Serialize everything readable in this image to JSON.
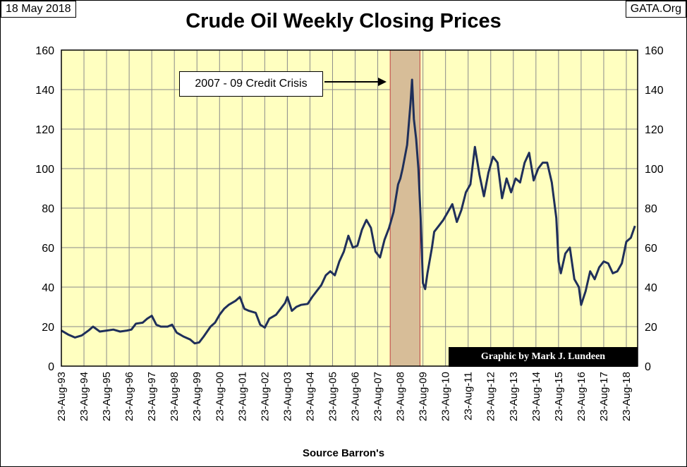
{
  "header": {
    "date_label": "18 May 2018",
    "source_label": "GATA.Org"
  },
  "chart_data": {
    "type": "line",
    "title": "Crude Oil Weekly Closing Prices",
    "xlabel": "Source Barron's",
    "ylabel": "",
    "ylim": [
      0,
      160
    ],
    "y_ticks": [
      0,
      20,
      40,
      60,
      80,
      100,
      120,
      140,
      160
    ],
    "x_tick_labels": [
      "23-Aug-93",
      "23-Aug-94",
      "23-Aug-95",
      "23-Aug-96",
      "23-Aug-97",
      "23-Aug-98",
      "23-Aug-99",
      "23-Aug-00",
      "23-Aug-01",
      "23-Aug-02",
      "23-Aug-03",
      "23-Aug-04",
      "23-Aug-05",
      "23-Aug-06",
      "23-Aug-07",
      "23-Aug-08",
      "23-Aug-09",
      "23-Aug-10",
      "23-Aug-11",
      "23-Aug-12",
      "23-Aug-13",
      "23-Aug-14",
      "23-Aug-15",
      "23-Aug-16",
      "23-Aug-17",
      "23-Aug-18"
    ],
    "xlim": [
      1993.0,
      2018.5
    ],
    "grid": true,
    "right_axis": true,
    "shaded_region": {
      "from": 2007.55,
      "to": 2008.87,
      "label": "2007 - 09 Credit Crisis"
    },
    "credit": "Graphic by Mark J. Lundeen",
    "colors": {
      "plot_bg": "#ffffc0",
      "line": "#1f2f5a",
      "shade": "#d7bd98",
      "shade_border": "#c04040"
    },
    "series": [
      {
        "values": [
          [
            1993.0,
            18
          ],
          [
            1993.3,
            16
          ],
          [
            1993.6,
            14.5
          ],
          [
            1993.9,
            15.5
          ],
          [
            1994.2,
            18
          ],
          [
            1994.4,
            20
          ],
          [
            1994.7,
            17.5
          ],
          [
            1995.0,
            18
          ],
          [
            1995.3,
            18.5
          ],
          [
            1995.6,
            17.5
          ],
          [
            1995.9,
            18
          ],
          [
            1996.1,
            18.5
          ],
          [
            1996.3,
            21.5
          ],
          [
            1996.6,
            22
          ],
          [
            1996.8,
            24
          ],
          [
            1997.0,
            25.5
          ],
          [
            1997.2,
            21
          ],
          [
            1997.4,
            20
          ],
          [
            1997.7,
            20
          ],
          [
            1997.9,
            21
          ],
          [
            1998.1,
            17
          ],
          [
            1998.4,
            15
          ],
          [
            1998.7,
            13.5
          ],
          [
            1998.9,
            11.5
          ],
          [
            1999.1,
            12
          ],
          [
            1999.3,
            15
          ],
          [
            1999.6,
            20
          ],
          [
            1999.8,
            22
          ],
          [
            2000.0,
            26
          ],
          [
            2000.2,
            29
          ],
          [
            2000.4,
            31
          ],
          [
            2000.7,
            33
          ],
          [
            2000.9,
            35
          ],
          [
            2001.1,
            29
          ],
          [
            2001.3,
            28
          ],
          [
            2001.6,
            27
          ],
          [
            2001.8,
            21
          ],
          [
            2002.0,
            19.5
          ],
          [
            2002.2,
            24
          ],
          [
            2002.5,
            26
          ],
          [
            2002.7,
            29
          ],
          [
            2002.9,
            32
          ],
          [
            2003.0,
            35
          ],
          [
            2003.2,
            28
          ],
          [
            2003.4,
            30
          ],
          [
            2003.6,
            31
          ],
          [
            2003.9,
            31.5
          ],
          [
            2004.1,
            35
          ],
          [
            2004.3,
            38
          ],
          [
            2004.5,
            41
          ],
          [
            2004.7,
            46
          ],
          [
            2004.9,
            48
          ],
          [
            2005.1,
            46
          ],
          [
            2005.3,
            53
          ],
          [
            2005.5,
            58
          ],
          [
            2005.7,
            66
          ],
          [
            2005.9,
            60
          ],
          [
            2006.1,
            61
          ],
          [
            2006.3,
            69
          ],
          [
            2006.5,
            74
          ],
          [
            2006.7,
            70
          ],
          [
            2006.9,
            58
          ],
          [
            2007.1,
            55
          ],
          [
            2007.3,
            64
          ],
          [
            2007.5,
            70
          ],
          [
            2007.7,
            78
          ],
          [
            2007.9,
            92
          ],
          [
            2008.0,
            95
          ],
          [
            2008.1,
            100
          ],
          [
            2008.3,
            112
          ],
          [
            2008.45,
            133
          ],
          [
            2008.52,
            145
          ],
          [
            2008.6,
            125
          ],
          [
            2008.7,
            115
          ],
          [
            2008.8,
            100
          ],
          [
            2008.9,
            75
          ],
          [
            2009.0,
            42
          ],
          [
            2009.1,
            39
          ],
          [
            2009.2,
            47
          ],
          [
            2009.4,
            60
          ],
          [
            2009.5,
            68
          ],
          [
            2009.7,
            71
          ],
          [
            2009.9,
            74
          ],
          [
            2010.1,
            78
          ],
          [
            2010.3,
            82
          ],
          [
            2010.5,
            73
          ],
          [
            2010.7,
            79
          ],
          [
            2010.9,
            88
          ],
          [
            2011.1,
            92
          ],
          [
            2011.3,
            111
          ],
          [
            2011.5,
            97
          ],
          [
            2011.7,
            86
          ],
          [
            2011.9,
            98
          ],
          [
            2012.1,
            106
          ],
          [
            2012.3,
            103
          ],
          [
            2012.5,
            85
          ],
          [
            2012.7,
            95
          ],
          [
            2012.9,
            88
          ],
          [
            2013.1,
            95
          ],
          [
            2013.3,
            93
          ],
          [
            2013.5,
            103
          ],
          [
            2013.7,
            108
          ],
          [
            2013.9,
            94
          ],
          [
            2014.1,
            100
          ],
          [
            2014.3,
            103
          ],
          [
            2014.5,
            103
          ],
          [
            2014.7,
            93
          ],
          [
            2014.9,
            75
          ],
          [
            2015.0,
            53
          ],
          [
            2015.1,
            47
          ],
          [
            2015.3,
            57
          ],
          [
            2015.5,
            60
          ],
          [
            2015.7,
            44
          ],
          [
            2015.9,
            40
          ],
          [
            2016.0,
            31
          ],
          [
            2016.2,
            38
          ],
          [
            2016.4,
            48
          ],
          [
            2016.6,
            44
          ],
          [
            2016.8,
            50
          ],
          [
            2017.0,
            53
          ],
          [
            2017.2,
            52
          ],
          [
            2017.4,
            47
          ],
          [
            2017.6,
            48
          ],
          [
            2017.8,
            52
          ],
          [
            2018.0,
            63
          ],
          [
            2018.2,
            65
          ],
          [
            2018.38,
            71
          ]
        ]
      }
    ]
  }
}
